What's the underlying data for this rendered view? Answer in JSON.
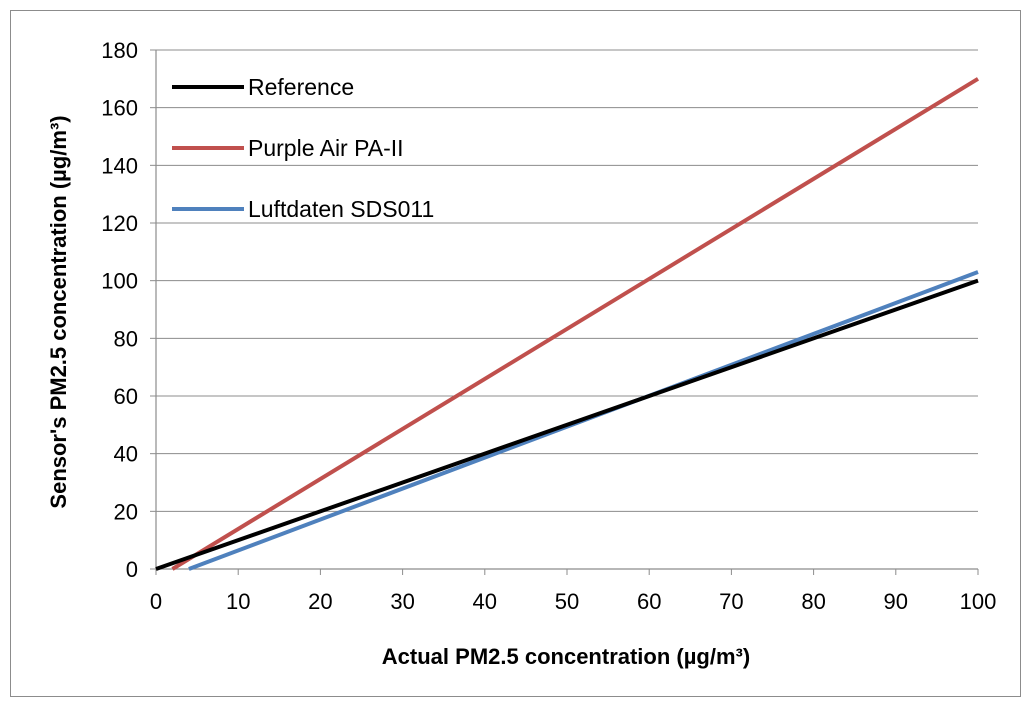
{
  "chart_data": {
    "type": "line",
    "title": "",
    "xlabel": "Actual PM2.5 concentration (µg/m³)",
    "ylabel": "Sensor's PM2.5 concentration (µg/m³)",
    "xlim": [
      0,
      100
    ],
    "ylim": [
      0,
      180
    ],
    "xticks": [
      0,
      10,
      20,
      30,
      40,
      50,
      60,
      70,
      80,
      90,
      100
    ],
    "yticks": [
      0,
      20,
      40,
      60,
      80,
      100,
      120,
      140,
      160,
      180
    ],
    "grid": "horizontal",
    "legend_position": "top-left",
    "series": [
      {
        "name": "Reference",
        "color": "#000000",
        "x": [
          0,
          100
        ],
        "y": [
          0,
          100
        ]
      },
      {
        "name": "Purple Air PA-II",
        "color": "#c0504d",
        "x": [
          2,
          100
        ],
        "y": [
          0,
          170
        ]
      },
      {
        "name": "Luftdaten SDS011",
        "color": "#4f81bd",
        "x": [
          4,
          100
        ],
        "y": [
          0,
          103
        ]
      }
    ]
  }
}
